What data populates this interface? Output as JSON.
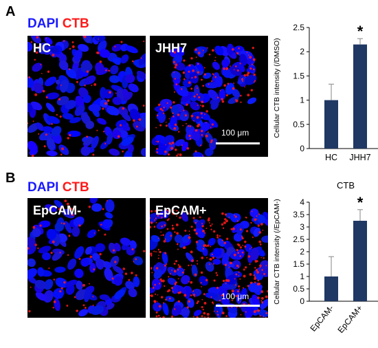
{
  "panel_a": {
    "letter": "A",
    "stain_dapi": "DAPI",
    "stain_ctb": "CTB",
    "image_left_label": "HC",
    "image_right_label": "JHH7",
    "scale_bar_label": "100 μm"
  },
  "panel_b": {
    "letter": "B",
    "stain_dapi": "DAPI",
    "stain_ctb": "CTB",
    "image_left_label": "EpCAM-",
    "image_right_label": "EpCAM+",
    "scale_bar_label": "100 μm"
  },
  "colors": {
    "dapi": "#1a1aff",
    "ctb": "#ff1a1a",
    "bar_fill": "#1f3864",
    "nucleus": "#1e1ef0"
  },
  "chart_data": [
    {
      "type": "bar",
      "title": "",
      "categories": [
        "HC",
        "JHH7"
      ],
      "values": [
        1.0,
        2.15
      ],
      "errors": [
        0.33,
        0.12
      ],
      "significance": [
        "",
        "*"
      ],
      "ylabel": "Cellular CTB intensity (/DMSO)",
      "xlabel": "",
      "ylim": [
        0,
        2.5
      ],
      "yticks": [
        "0",
        "0.5",
        "1",
        "1.5",
        "2",
        "2.5"
      ],
      "grid": false
    },
    {
      "type": "bar",
      "title": "CTB",
      "categories": [
        "EpCAM-",
        "EpCAM+"
      ],
      "values": [
        1.0,
        3.25
      ],
      "errors": [
        0.8,
        0.45
      ],
      "significance": [
        "",
        "*"
      ],
      "ylabel": "Cellular CTB intensity (/EpCAM-)",
      "xlabel": "",
      "ylim": [
        0,
        4
      ],
      "yticks": [
        "0",
        "0.5",
        "1",
        "1.5",
        "2",
        "2.5",
        "3",
        "3.5",
        "4"
      ],
      "grid": false
    }
  ]
}
